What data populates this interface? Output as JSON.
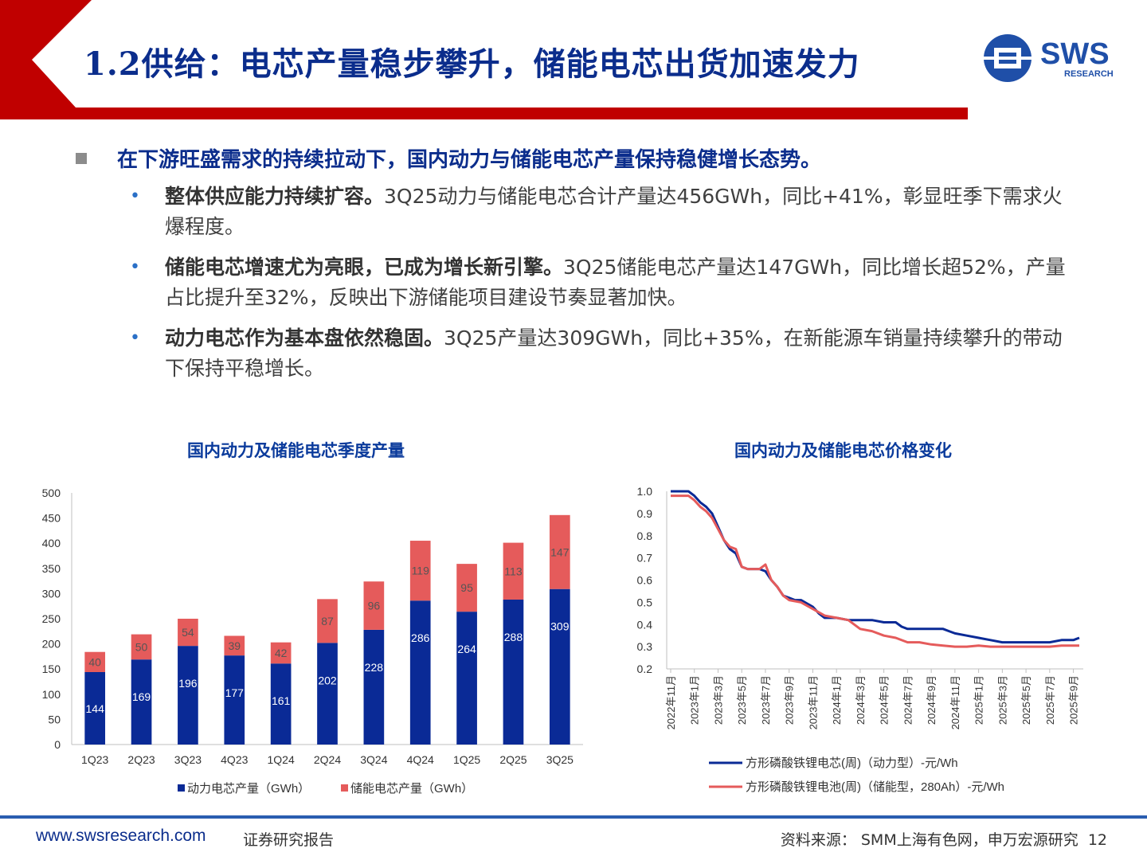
{
  "header": {
    "title": "1.2供给：电芯产量稳步攀升，储能电芯出货加速发力",
    "logo_text": "SWS",
    "logo_sub": "RESEARCH"
  },
  "main_point": "在下游旺盛需求的持续拉动下，国内动力与储能电芯产量保持稳健增长态势。",
  "bullets": [
    {
      "bold": "整体供应能力持续扩容。",
      "text": "3Q25动力与储能电芯合计产量达456GWh，同比+41%，彰显旺季下需求火爆程度。"
    },
    {
      "bold": "储能电芯增速尤为亮眼，已成为增长新引擎。",
      "text": "3Q25储能电芯产量达147GWh，同比增长超52%，产量占比提升至32%，反映出下游储能项目建设节奏显著加快。"
    },
    {
      "bold": "动力电芯作为基本盘依然稳固。",
      "text": "3Q25产量达309GWh，同比+35%，在新能源车销量持续攀升的带动下保持平稳增长。"
    }
  ],
  "colors": {
    "title_blue": "#0b2d8c",
    "red": "#c00000",
    "bar_blue": "#0a2a96",
    "bar_red": "#e55b5b",
    "line_blue": "#0a2a96",
    "line_red": "#e55b5b"
  },
  "chart_data": [
    {
      "type": "bar",
      "stacked": true,
      "title": "国内动力及储能电芯季度产量",
      "categories": [
        "1Q23",
        "2Q23",
        "3Q23",
        "4Q23",
        "1Q24",
        "2Q24",
        "3Q24",
        "4Q24",
        "1Q25",
        "2Q25",
        "3Q25"
      ],
      "series": [
        {
          "name": "动力电芯产量（GWh）",
          "values": [
            144,
            169,
            196,
            177,
            161,
            202,
            228,
            286,
            264,
            288,
            309
          ]
        },
        {
          "name": "储能电芯产量（GWh）",
          "values": [
            40,
            50,
            54,
            39,
            42,
            87,
            96,
            119,
            95,
            113,
            147
          ]
        }
      ],
      "ylim": [
        0,
        500
      ],
      "yticks": [
        0,
        50,
        100,
        150,
        200,
        250,
        300,
        350,
        400,
        450,
        500
      ],
      "legend": "bottom"
    },
    {
      "type": "line",
      "title": "国内动力及储能电芯价格变化",
      "x_ticks": [
        "2022年11月",
        "2023年1月",
        "2023年3月",
        "2023年5月",
        "2023年7月",
        "2023年9月",
        "2023年11月",
        "2024年1月",
        "2024年3月",
        "2024年5月",
        "2024年7月",
        "2024年9月",
        "2024年11月",
        "2025年1月",
        "2025年3月",
        "2025年5月",
        "2025年7月",
        "2025年9月"
      ],
      "ylim": [
        0.2,
        1.0
      ],
      "yticks": [
        "1.0",
        "0.9",
        "0.8",
        "0.7",
        "0.6",
        "0.5",
        "0.4",
        "0.3",
        "0.2"
      ],
      "legend": "bottom",
      "series": [
        {
          "name": "方形磷酸铁锂电芯(周)（动力型）-元/Wh",
          "points": [
            [
              0,
              1.0
            ],
            [
              1.5,
              1.0
            ],
            [
              2,
              0.98
            ],
            [
              2.5,
              0.95
            ],
            [
              3,
              0.93
            ],
            [
              3.5,
              0.9
            ],
            [
              4,
              0.84
            ],
            [
              4.5,
              0.78
            ],
            [
              5,
              0.74
            ],
            [
              5.5,
              0.72
            ],
            [
              6,
              0.66
            ],
            [
              6.5,
              0.65
            ],
            [
              7,
              0.65
            ],
            [
              7.5,
              0.65
            ],
            [
              8,
              0.64
            ],
            [
              8.5,
              0.6
            ],
            [
              9,
              0.57
            ],
            [
              9.5,
              0.53
            ],
            [
              10,
              0.52
            ],
            [
              10.5,
              0.51
            ],
            [
              11,
              0.51
            ],
            [
              12,
              0.48
            ],
            [
              12.5,
              0.45
            ],
            [
              13,
              0.43
            ],
            [
              14,
              0.43
            ],
            [
              15,
              0.42
            ],
            [
              15.5,
              0.42
            ],
            [
              16,
              0.42
            ],
            [
              16.5,
              0.42
            ],
            [
              17,
              0.42
            ],
            [
              18,
              0.41
            ],
            [
              19,
              0.41
            ],
            [
              19.5,
              0.39
            ],
            [
              20,
              0.38
            ],
            [
              21,
              0.38
            ],
            [
              22,
              0.38
            ],
            [
              23,
              0.38
            ],
            [
              23.5,
              0.37
            ],
            [
              24,
              0.36
            ],
            [
              25,
              0.35
            ],
            [
              26,
              0.34
            ],
            [
              27,
              0.33
            ],
            [
              28,
              0.32
            ],
            [
              29,
              0.32
            ],
            [
              30,
              0.32
            ],
            [
              31,
              0.32
            ],
            [
              32,
              0.32
            ],
            [
              33,
              0.33
            ],
            [
              34,
              0.33
            ],
            [
              34.5,
              0.34
            ]
          ]
        },
        {
          "name": "方形磷酸铁锂电池(周)（储能型，280Ah）-元/Wh",
          "points": [
            [
              0,
              0.98
            ],
            [
              1.5,
              0.98
            ],
            [
              2,
              0.96
            ],
            [
              2.5,
              0.93
            ],
            [
              3,
              0.91
            ],
            [
              3.5,
              0.88
            ],
            [
              4,
              0.83
            ],
            [
              4.5,
              0.78
            ],
            [
              5,
              0.75
            ],
            [
              5.5,
              0.74
            ],
            [
              6,
              0.66
            ],
            [
              6.5,
              0.65
            ],
            [
              7,
              0.65
            ],
            [
              7.5,
              0.65
            ],
            [
              8,
              0.67
            ],
            [
              8.5,
              0.6
            ],
            [
              9,
              0.57
            ],
            [
              9.5,
              0.53
            ],
            [
              10,
              0.51
            ],
            [
              11,
              0.5
            ],
            [
              12,
              0.47
            ],
            [
              13,
              0.44
            ],
            [
              14,
              0.43
            ],
            [
              15,
              0.42
            ],
            [
              16,
              0.38
            ],
            [
              17,
              0.37
            ],
            [
              18,
              0.35
            ],
            [
              19,
              0.34
            ],
            [
              20,
              0.32
            ],
            [
              21,
              0.32
            ],
            [
              22,
              0.31
            ],
            [
              23,
              0.305
            ],
            [
              24,
              0.3
            ],
            [
              25,
              0.3
            ],
            [
              26,
              0.305
            ],
            [
              27,
              0.3
            ],
            [
              28,
              0.3
            ],
            [
              29,
              0.3
            ],
            [
              30,
              0.3
            ],
            [
              31,
              0.3
            ],
            [
              32,
              0.3
            ],
            [
              33,
              0.305
            ],
            [
              34,
              0.305
            ],
            [
              34.5,
              0.305
            ]
          ]
        }
      ]
    }
  ],
  "footer": {
    "url": "www.swsresearch.com",
    "report": "证券研究报告",
    "source": "资料来源：  SMM上海有色网，申万宏源研究",
    "page": "12"
  }
}
